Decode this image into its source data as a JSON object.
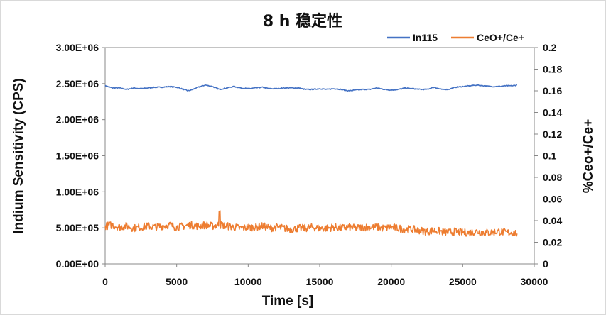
{
  "chart_data": {
    "type": "line",
    "title": "8 h 稳定性",
    "xlabel": "Time [s]",
    "ylabel_left": "Indium Sensitivity (CPS)",
    "ylabel_right": "%Ceo+/Ce+",
    "xlim": [
      0,
      30000
    ],
    "ylim_left": [
      0,
      3000000
    ],
    "ylim_right": [
      0,
      0.2
    ],
    "x_ticks": [
      "0",
      "5000",
      "10000",
      "15000",
      "20000",
      "25000",
      "30000"
    ],
    "y_left_ticks": [
      "0.00E+00",
      "5.00E+05",
      "1.00E+06",
      "1.50E+06",
      "2.00E+06",
      "2.50E+06",
      "3.00E+06"
    ],
    "y_right_ticks": [
      "0",
      "0.02",
      "0.04",
      "0.06",
      "0.08",
      "0.1",
      "0.12",
      "0.14",
      "0.16",
      "0.18",
      "0.2"
    ],
    "grid": false,
    "legend_position": "top-right",
    "series": [
      {
        "name": "In115",
        "axis": "left",
        "color": "#4472C4",
        "x": [
          0,
          500,
          1000,
          1500,
          2000,
          2500,
          3000,
          3500,
          4000,
          4500,
          5000,
          5500,
          5800,
          6000,
          6500,
          7000,
          7500,
          8000,
          8500,
          9000,
          9500,
          10000,
          10500,
          11000,
          11500,
          12000,
          12500,
          13000,
          13500,
          14000,
          14500,
          15000,
          15500,
          16000,
          16500,
          17000,
          17500,
          18000,
          18500,
          19000,
          19500,
          20000,
          20500,
          21000,
          21500,
          22000,
          22500,
          23000,
          23500,
          24000,
          24500,
          25000,
          25500,
          26000,
          26500,
          27000,
          27500,
          28000,
          28500,
          28800
        ],
        "values": [
          2470000,
          2440000,
          2440000,
          2420000,
          2440000,
          2430000,
          2440000,
          2450000,
          2450000,
          2460000,
          2450000,
          2420000,
          2400000,
          2410000,
          2450000,
          2480000,
          2460000,
          2420000,
          2440000,
          2460000,
          2440000,
          2430000,
          2440000,
          2450000,
          2430000,
          2430000,
          2440000,
          2440000,
          2440000,
          2420000,
          2420000,
          2430000,
          2420000,
          2430000,
          2420000,
          2400000,
          2410000,
          2420000,
          2420000,
          2440000,
          2420000,
          2410000,
          2420000,
          2440000,
          2430000,
          2420000,
          2420000,
          2450000,
          2420000,
          2420000,
          2450000,
          2460000,
          2470000,
          2480000,
          2470000,
          2460000,
          2460000,
          2470000,
          2470000,
          2480000
        ]
      },
      {
        "name": "CeO+/Ce+",
        "axis": "right",
        "color": "#ED7D31",
        "x": [
          0,
          500,
          1000,
          1500,
          2000,
          2500,
          3000,
          3500,
          4000,
          4500,
          5000,
          5500,
          6000,
          6500,
          7000,
          7500,
          7900,
          8000,
          8100,
          8500,
          9000,
          9500,
          10000,
          10500,
          11000,
          11500,
          12000,
          12500,
          13000,
          13500,
          14000,
          14500,
          15000,
          15500,
          16000,
          16500,
          17000,
          17500,
          18000,
          18500,
          19000,
          19500,
          20000,
          20500,
          21000,
          21500,
          22000,
          22500,
          23000,
          23500,
          24000,
          24500,
          25000,
          25500,
          26000,
          26500,
          27000,
          27500,
          28000,
          28500,
          28800
        ],
        "values": [
          0.035,
          0.036,
          0.034,
          0.035,
          0.033,
          0.034,
          0.035,
          0.034,
          0.035,
          0.036,
          0.034,
          0.035,
          0.036,
          0.035,
          0.036,
          0.035,
          0.036,
          0.051,
          0.036,
          0.035,
          0.034,
          0.033,
          0.034,
          0.034,
          0.035,
          0.033,
          0.034,
          0.033,
          0.032,
          0.033,
          0.033,
          0.034,
          0.033,
          0.033,
          0.034,
          0.033,
          0.034,
          0.033,
          0.034,
          0.034,
          0.034,
          0.033,
          0.034,
          0.033,
          0.032,
          0.032,
          0.031,
          0.03,
          0.031,
          0.03,
          0.029,
          0.03,
          0.029,
          0.029,
          0.03,
          0.029,
          0.029,
          0.03,
          0.029,
          0.029,
          0.028
        ]
      }
    ]
  }
}
